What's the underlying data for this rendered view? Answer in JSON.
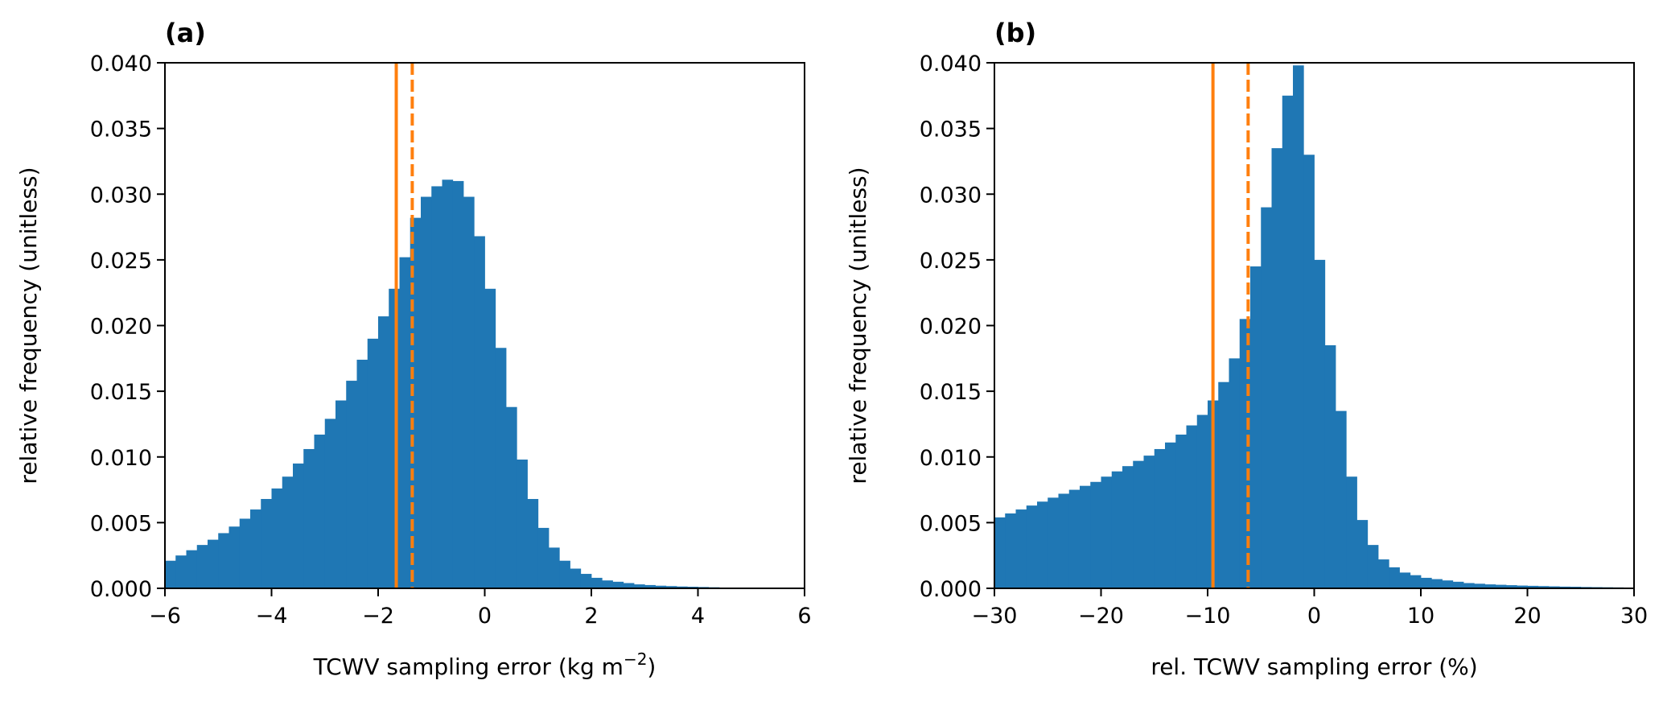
{
  "chart_data": [
    {
      "type": "bar",
      "panel_label": "(a)",
      "title": "",
      "xlabel": "TCWV sampling error (kg m",
      "xlabel_sup": "−2",
      "xlabel_end": ")",
      "ylabel": "relative frequency (unitless)",
      "xlim": [
        -6,
        6
      ],
      "ylim": [
        0,
        0.04
      ],
      "xticks": [
        -6,
        -4,
        -2,
        0,
        2,
        4,
        6
      ],
      "xtick_labels": [
        "−6",
        "−4",
        "−2",
        "0",
        "2",
        "4",
        "6"
      ],
      "yticks": [
        0,
        0.005,
        0.01,
        0.015,
        0.02,
        0.025,
        0.03,
        0.035,
        0.04
      ],
      "ytick_labels": [
        "0.000",
        "0.005",
        "0.010",
        "0.015",
        "0.020",
        "0.025",
        "0.030",
        "0.035",
        "0.040"
      ],
      "bin_start": -6,
      "bin_width": 0.2,
      "values": [
        0.0021,
        0.0025,
        0.0029,
        0.0033,
        0.0037,
        0.0042,
        0.0047,
        0.0053,
        0.006,
        0.0068,
        0.0076,
        0.0085,
        0.0095,
        0.0106,
        0.0117,
        0.0129,
        0.0143,
        0.0158,
        0.0174,
        0.019,
        0.0207,
        0.0228,
        0.0252,
        0.0282,
        0.0298,
        0.0306,
        0.0311,
        0.031,
        0.0298,
        0.0268,
        0.0228,
        0.0183,
        0.0138,
        0.0098,
        0.0068,
        0.0046,
        0.0031,
        0.0021,
        0.0015,
        0.0011,
        0.0008,
        0.0006,
        0.0005,
        0.0004,
        0.0003,
        0.00025,
        0.0002,
        0.00017,
        0.00014,
        0.00012,
        0.0001,
        8e-05,
        6e-05,
        5e-05,
        3e-05,
        2e-05,
        1e-05,
        1e-05,
        0,
        0
      ],
      "vlines": [
        {
          "x": -1.66,
          "style": "solid"
        },
        {
          "x": -1.36,
          "style": "dashed"
        }
      ],
      "bar_color": "#1f77b4",
      "line_color": "#ff7f0e"
    },
    {
      "type": "bar",
      "panel_label": "(b)",
      "title": "",
      "xlabel": "rel. TCWV sampling error (%)",
      "ylabel": "relative frequency (unitless)",
      "xlim": [
        -30,
        30
      ],
      "ylim": [
        0,
        0.04
      ],
      "xticks": [
        -30,
        -20,
        -10,
        0,
        10,
        20,
        30
      ],
      "xtick_labels": [
        "−30",
        "−20",
        "−10",
        "0",
        "10",
        "20",
        "30"
      ],
      "yticks": [
        0,
        0.005,
        0.01,
        0.015,
        0.02,
        0.025,
        0.03,
        0.035,
        0.04
      ],
      "ytick_labels": [
        "0.000",
        "0.005",
        "0.010",
        "0.015",
        "0.020",
        "0.025",
        "0.030",
        "0.035",
        "0.040"
      ],
      "bin_start": -30,
      "bin_width": 1,
      "values": [
        0.0054,
        0.0057,
        0.006,
        0.0063,
        0.0066,
        0.0069,
        0.0072,
        0.0075,
        0.0078,
        0.0081,
        0.0085,
        0.0089,
        0.0093,
        0.0097,
        0.0101,
        0.0106,
        0.0111,
        0.0117,
        0.0124,
        0.0132,
        0.0143,
        0.0157,
        0.0175,
        0.0205,
        0.0245,
        0.029,
        0.0335,
        0.0375,
        0.0398,
        0.033,
        0.025,
        0.0185,
        0.0135,
        0.0085,
        0.0052,
        0.0033,
        0.0022,
        0.0016,
        0.0012,
        0.001,
        0.0008,
        0.0007,
        0.0006,
        0.0005,
        0.0004,
        0.00035,
        0.0003,
        0.00027,
        0.00024,
        0.00021,
        0.00019,
        0.00017,
        0.00015,
        0.00013,
        0.00012,
        0.0001,
        9e-05,
        8e-05,
        7e-05,
        6e-05
      ],
      "vlines": [
        {
          "x": -9.5,
          "style": "solid"
        },
        {
          "x": -6.2,
          "style": "dashed"
        }
      ],
      "bar_color": "#1f77b4",
      "line_color": "#ff7f0e"
    }
  ]
}
